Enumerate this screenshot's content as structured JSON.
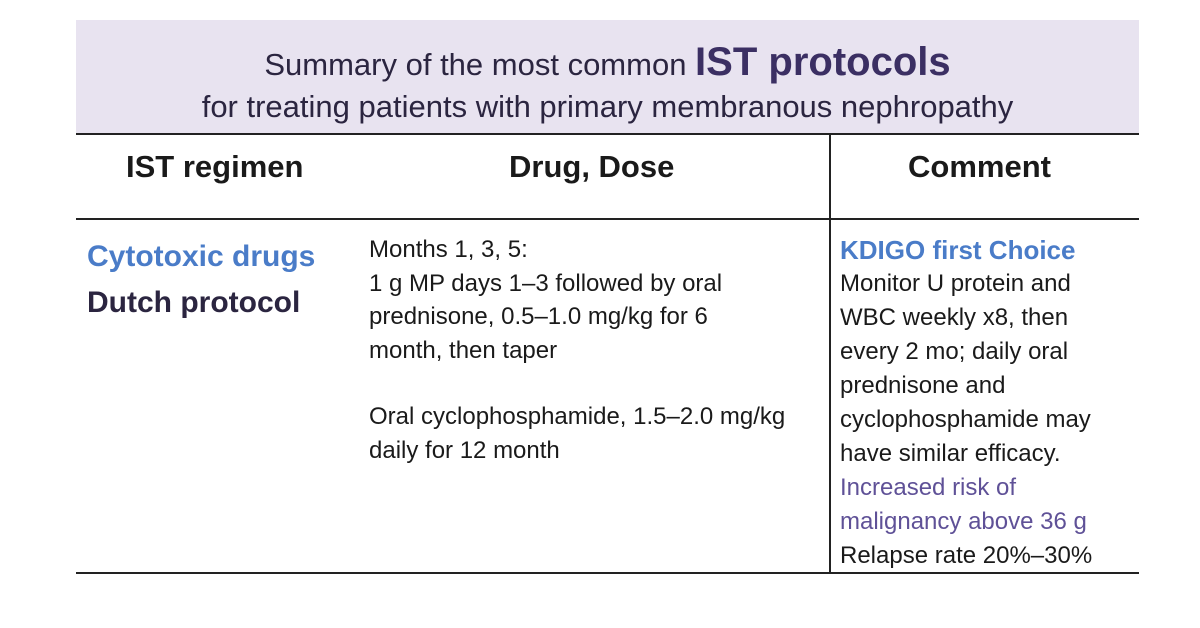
{
  "header": {
    "title_prefix": "Summary of the most common ",
    "title_emphasis": "IST protocols",
    "subtitle": "for treating patients with primary membranous nephropathy"
  },
  "table": {
    "columns": [
      "IST regimen",
      "Drug, Dose",
      "Comment"
    ],
    "row": {
      "regimen_line1": "Cytotoxic drugs",
      "regimen_line2": "Dutch protocol",
      "drug_lines": [
        "Months 1, 3, 5:",
        "1 g MP days 1–3 followed by oral",
        "prednisone, 0.5–1.0 mg/kg for 6",
        "month, then taper",
        "Oral cyclophosphamide, 1.5–2.0 mg/kg",
        "daily for 12 month"
      ],
      "comment_heading": "KDIGO first Choice",
      "comment_lines": [
        "Monitor U protein and",
        "WBC weekly x8, then",
        "every 2 mo; daily oral",
        "prednisone and",
        "cyclophosphamide may",
        "have similar efficacy."
      ],
      "comment_risk_lines": [
        "Increased risk of",
        "malignancy above 36 g"
      ],
      "comment_relapse": "Relapse rate 20%–30%"
    }
  },
  "colors": {
    "header_bg": "#e8e3f0",
    "accent_blue": "#4a7cc8",
    "dark_purple": "#2b2540",
    "risk_purple": "#5f5197"
  }
}
